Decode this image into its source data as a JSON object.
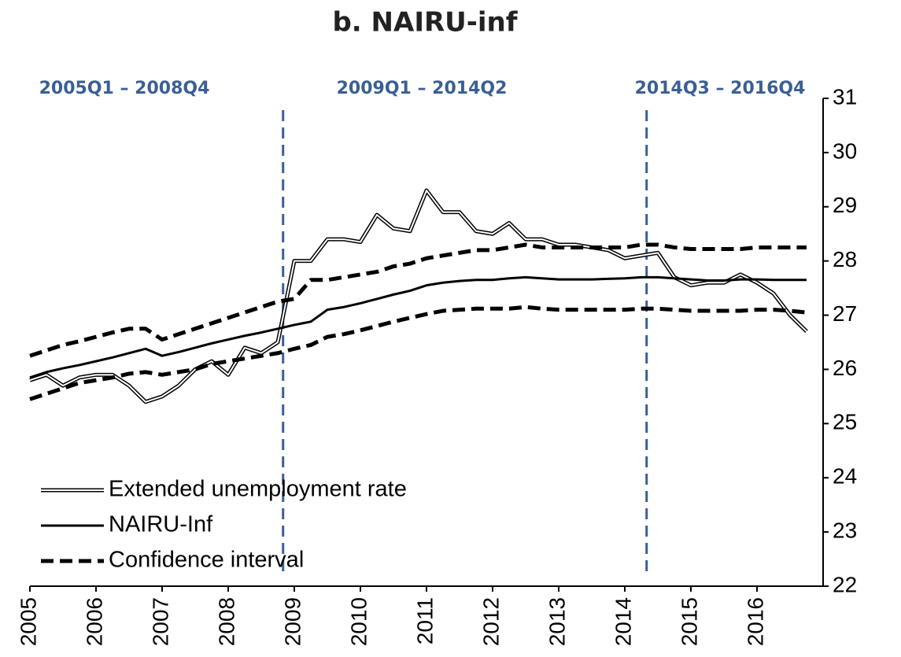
{
  "chart_data": {
    "type": "line",
    "title": "b. NAIRU-inf",
    "annotations": [
      "2005Q1 – 2008Q4",
      "2009Q1 – 2014Q2",
      "2014Q3 – 2016Q4"
    ],
    "vlines": [
      2008.83,
      2014.33
    ],
    "vline_color": "#3a5f95",
    "x": [
      2005,
      2005.25,
      2005.5,
      2005.75,
      2006,
      2006.25,
      2006.5,
      2006.75,
      2007,
      2007.25,
      2007.5,
      2007.75,
      2008,
      2008.25,
      2008.5,
      2008.75,
      2009,
      2009.25,
      2009.5,
      2009.75,
      2010,
      2010.25,
      2010.5,
      2010.75,
      2011,
      2011.25,
      2011.5,
      2011.75,
      2012,
      2012.25,
      2012.5,
      2012.75,
      2013,
      2013.25,
      2013.5,
      2013.75,
      2014,
      2014.25,
      2014.5,
      2014.75,
      2015,
      2015.25,
      2015.5,
      2015.75,
      2016,
      2016.25,
      2016.5,
      2016.75
    ],
    "series": [
      {
        "name": "Extended unemployment rate",
        "color": "#000000",
        "style": "double",
        "values": [
          25.8,
          25.9,
          25.7,
          25.85,
          25.9,
          25.9,
          25.7,
          25.4,
          25.5,
          25.7,
          26.0,
          26.15,
          25.9,
          26.4,
          26.3,
          26.5,
          28.0,
          28.0,
          28.4,
          28.4,
          28.35,
          28.85,
          28.6,
          28.55,
          29.3,
          28.9,
          28.9,
          28.55,
          28.5,
          28.7,
          28.4,
          28.4,
          28.3,
          28.3,
          28.25,
          28.2,
          28.05,
          28.1,
          28.15,
          27.7,
          27.55,
          27.6,
          27.6,
          27.75,
          27.6,
          27.4,
          27.0,
          26.7
        ]
      },
      {
        "name": "NAIRU-Inf",
        "color": "#000000",
        "style": "solid",
        "values": [
          25.85,
          25.95,
          26.02,
          26.08,
          26.15,
          26.22,
          26.3,
          26.38,
          26.25,
          26.32,
          26.4,
          26.48,
          26.55,
          26.62,
          26.68,
          26.75,
          26.82,
          26.88,
          27.1,
          27.15,
          27.22,
          27.3,
          27.38,
          27.45,
          27.55,
          27.6,
          27.63,
          27.65,
          27.65,
          27.68,
          27.7,
          27.68,
          27.66,
          27.66,
          27.66,
          27.67,
          27.68,
          27.7,
          27.7,
          27.68,
          27.66,
          27.64,
          27.64,
          27.66,
          27.66,
          27.65,
          27.65,
          27.65
        ]
      },
      {
        "name": "Confidence interval",
        "color": "#000000",
        "style": "dashed",
        "values": [
          26.25,
          26.35,
          26.45,
          26.52,
          26.6,
          26.68,
          26.75,
          26.75,
          26.55,
          26.65,
          26.75,
          26.85,
          26.95,
          27.05,
          27.15,
          27.25,
          27.3,
          27.65,
          27.65,
          27.7,
          27.75,
          27.8,
          27.9,
          27.95,
          28.05,
          28.1,
          28.15,
          28.2,
          28.2,
          28.25,
          28.3,
          28.25,
          28.25,
          28.25,
          28.25,
          28.25,
          28.25,
          28.3,
          28.3,
          28.25,
          28.22,
          28.22,
          28.22,
          28.22,
          28.25,
          28.25,
          28.25,
          28.25
        ]
      },
      {
        "color": "#000000",
        "style": "dashed",
        "values": [
          25.45,
          25.55,
          25.65,
          25.75,
          25.8,
          25.85,
          25.92,
          25.95,
          25.9,
          25.95,
          26.0,
          26.1,
          26.15,
          26.2,
          26.25,
          26.3,
          26.38,
          26.45,
          26.6,
          26.65,
          26.72,
          26.8,
          26.88,
          26.95,
          27.02,
          27.08,
          27.1,
          27.12,
          27.12,
          27.12,
          27.15,
          27.12,
          27.1,
          27.1,
          27.1,
          27.1,
          27.1,
          27.12,
          27.12,
          27.1,
          27.08,
          27.08,
          27.08,
          27.08,
          27.1,
          27.1,
          27.08,
          27.05
        ]
      }
    ],
    "xlim": [
      2005,
      2017
    ],
    "xticks": [
      2005,
      2006,
      2007,
      2008,
      2009,
      2010,
      2011,
      2012,
      2013,
      2014,
      2015,
      2016
    ],
    "ylim": [
      22,
      31
    ],
    "yticks": [
      22,
      23,
      24,
      25,
      26,
      27,
      28,
      29,
      30,
      31
    ],
    "legend": "lower left"
  }
}
